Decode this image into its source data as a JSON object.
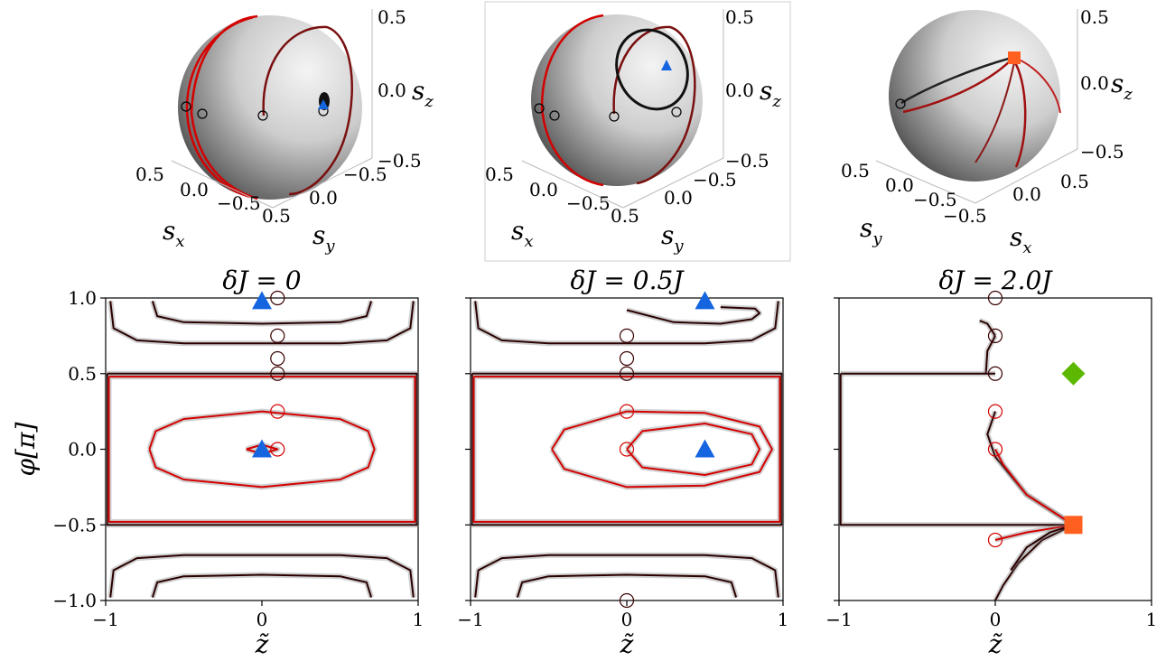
{
  "spheres": [
    {
      "axis_labels": {
        "left": "s",
        "left_sub": "x",
        "right": "s",
        "right_sub": "y",
        "vertical": "s",
        "vertical_sub": "z"
      },
      "z_ticks": [
        "0.5",
        "0.0",
        "−0.5"
      ],
      "left_ticks": [
        "0.5",
        "0.0",
        "−0.5"
      ],
      "right_ticks": [
        "−0.5",
        "0.0",
        "0.5"
      ],
      "markers": [
        "blue-triangle"
      ]
    },
    {
      "axis_labels": {
        "left": "s",
        "left_sub": "x",
        "right": "s",
        "right_sub": "y",
        "vertical": "s",
        "vertical_sub": "z"
      },
      "z_ticks": [
        "0.5",
        "0.0",
        "−0.5"
      ],
      "left_ticks": [
        "0.5",
        "0.0",
        "−0.5"
      ],
      "right_ticks": [
        "−0.5",
        "0.0",
        "0.5"
      ],
      "markers": [
        "blue-triangle"
      ]
    },
    {
      "axis_labels": {
        "left": "s",
        "left_sub": "y",
        "right": "s",
        "right_sub": "x",
        "vertical": "s",
        "vertical_sub": "z"
      },
      "z_ticks": [
        "0.5",
        "0.0",
        "−0.5"
      ],
      "left_ticks": [
        "0.5",
        "0.0",
        "−0.5"
      ],
      "right_ticks": [
        "−0.5",
        "0.0",
        "0.5"
      ],
      "markers": [
        "orange-square"
      ]
    }
  ],
  "chart_data": [
    {
      "type": "line",
      "title": "δJ = 0",
      "xlabel": "z̃",
      "ylabel": "φ[π]",
      "xlim": [
        -1,
        1
      ],
      "ylim": [
        -1,
        1
      ],
      "x_ticks": [
        -1,
        0,
        1
      ],
      "y_ticks": [
        -1.0,
        -0.5,
        0.0,
        0.5,
        1.0
      ],
      "colors": {
        "red": "#d40000",
        "dark": "#2a0000",
        "triangle": "#1565e0",
        "square": "#ff6020",
        "diamond": "#5cb800"
      },
      "series": [
        {
          "color": "dark",
          "points": [
            [
              -0.97,
              0.98
            ],
            [
              -0.95,
              0.8
            ],
            [
              -0.8,
              0.72
            ],
            [
              -0.5,
              0.7
            ],
            [
              0.0,
              0.7
            ],
            [
              0.5,
              0.7
            ],
            [
              0.8,
              0.72
            ],
            [
              0.95,
              0.8
            ],
            [
              0.97,
              0.98
            ]
          ]
        },
        {
          "color": "dark",
          "points": [
            [
              -0.7,
              0.98
            ],
            [
              -0.67,
              0.88
            ],
            [
              -0.5,
              0.84
            ],
            [
              0.0,
              0.83
            ],
            [
              0.5,
              0.84
            ],
            [
              0.67,
              0.88
            ],
            [
              0.7,
              0.98
            ]
          ]
        },
        {
          "color": "dark",
          "points": [
            [
              -0.97,
              -0.98
            ],
            [
              -0.95,
              -0.8
            ],
            [
              -0.8,
              -0.72
            ],
            [
              -0.5,
              -0.7
            ],
            [
              0.0,
              -0.7
            ],
            [
              0.5,
              -0.7
            ],
            [
              0.8,
              -0.72
            ],
            [
              0.95,
              -0.8
            ],
            [
              0.97,
              -0.98
            ]
          ]
        },
        {
          "color": "dark",
          "points": [
            [
              -0.7,
              -0.98
            ],
            [
              -0.67,
              -0.88
            ],
            [
              -0.5,
              -0.84
            ],
            [
              0.0,
              -0.83
            ],
            [
              0.5,
              -0.84
            ],
            [
              0.67,
              -0.88
            ],
            [
              0.7,
              -0.98
            ]
          ]
        },
        {
          "color": "dark",
          "points": [
            [
              -0.99,
              0.5
            ],
            [
              0.99,
              0.5
            ],
            [
              0.99,
              -0.5
            ],
            [
              -0.99,
              -0.5
            ],
            [
              -0.99,
              0.5
            ]
          ]
        },
        {
          "color": "red",
          "points": [
            [
              -0.98,
              0.48
            ],
            [
              0.98,
              0.48
            ],
            [
              0.98,
              -0.48
            ],
            [
              -0.98,
              -0.48
            ],
            [
              -0.98,
              0.48
            ]
          ]
        },
        {
          "color": "red",
          "points": [
            [
              -0.72,
              0.0
            ],
            [
              -0.68,
              0.12
            ],
            [
              -0.5,
              0.2
            ],
            [
              0.0,
              0.25
            ],
            [
              0.5,
              0.2
            ],
            [
              0.68,
              0.12
            ],
            [
              0.72,
              0.0
            ],
            [
              0.68,
              -0.12
            ],
            [
              0.5,
              -0.2
            ],
            [
              0.0,
              -0.25
            ],
            [
              -0.5,
              -0.2
            ],
            [
              -0.68,
              -0.12
            ],
            [
              -0.72,
              0.0
            ]
          ]
        },
        {
          "color": "red",
          "points": [
            [
              -0.1,
              0.0
            ],
            [
              0.0,
              0.03
            ],
            [
              0.1,
              0.0
            ],
            [
              0.0,
              -0.03
            ],
            [
              -0.1,
              0.0
            ]
          ]
        }
      ],
      "circles": [
        [
          0.1,
          1.0
        ],
        [
          0.1,
          0.75
        ],
        [
          0.1,
          0.6
        ],
        [
          0.1,
          0.5
        ],
        [
          0.1,
          0.25
        ],
        [
          0.1,
          0.0
        ]
      ],
      "triangles": [
        [
          0.0,
          0.98
        ],
        [
          0.0,
          0.0
        ]
      ],
      "squares": [],
      "diamonds": []
    },
    {
      "type": "line",
      "title": "δJ = 0.5J",
      "xlabel": "z̃",
      "ylabel": "",
      "xlim": [
        -1,
        1
      ],
      "ylim": [
        -1,
        1
      ],
      "x_ticks": [
        -1,
        0,
        1
      ],
      "y_ticks": [
        -1.0,
        -0.5,
        0.0,
        0.5,
        1.0
      ],
      "colors": {
        "red": "#d40000",
        "dark": "#2a0000",
        "triangle": "#1565e0",
        "square": "#ff6020",
        "diamond": "#5cb800"
      },
      "series": [
        {
          "color": "dark",
          "points": [
            [
              -0.97,
              0.98
            ],
            [
              -0.95,
              0.8
            ],
            [
              -0.8,
              0.72
            ],
            [
              -0.5,
              0.7
            ],
            [
              0.0,
              0.7
            ],
            [
              0.5,
              0.7
            ],
            [
              0.8,
              0.72
            ],
            [
              0.95,
              0.8
            ],
            [
              0.97,
              0.98
            ]
          ]
        },
        {
          "color": "dark",
          "points": [
            [
              0.0,
              0.92
            ],
            [
              0.3,
              0.84
            ],
            [
              0.6,
              0.83
            ],
            [
              0.8,
              0.86
            ],
            [
              0.85,
              0.9
            ],
            [
              0.82,
              0.93
            ],
            [
              0.6,
              0.94
            ]
          ]
        },
        {
          "color": "dark",
          "points": [
            [
              -0.97,
              -0.98
            ],
            [
              -0.95,
              -0.8
            ],
            [
              -0.8,
              -0.72
            ],
            [
              -0.5,
              -0.7
            ],
            [
              0.0,
              -0.7
            ],
            [
              0.5,
              -0.7
            ],
            [
              0.8,
              -0.72
            ],
            [
              0.95,
              -0.8
            ],
            [
              0.97,
              -0.98
            ]
          ]
        },
        {
          "color": "dark",
          "points": [
            [
              -0.7,
              -0.98
            ],
            [
              -0.67,
              -0.88
            ],
            [
              -0.5,
              -0.84
            ],
            [
              0.0,
              -0.83
            ],
            [
              0.5,
              -0.84
            ],
            [
              0.67,
              -0.88
            ],
            [
              0.7,
              -0.98
            ]
          ]
        },
        {
          "color": "dark",
          "points": [
            [
              -0.99,
              0.5
            ],
            [
              0.99,
              0.5
            ],
            [
              0.99,
              -0.5
            ],
            [
              -0.99,
              -0.5
            ],
            [
              -0.99,
              0.5
            ]
          ]
        },
        {
          "color": "red",
          "points": [
            [
              -0.98,
              0.48
            ],
            [
              0.98,
              0.48
            ],
            [
              0.98,
              -0.48
            ],
            [
              -0.98,
              -0.48
            ],
            [
              -0.98,
              0.48
            ]
          ]
        },
        {
          "color": "red",
          "points": [
            [
              -0.48,
              0.0
            ],
            [
              -0.4,
              0.13
            ],
            [
              0.0,
              0.25
            ],
            [
              0.5,
              0.24
            ],
            [
              0.85,
              0.15
            ],
            [
              0.93,
              0.0
            ],
            [
              0.85,
              -0.15
            ],
            [
              0.5,
              -0.24
            ],
            [
              0.0,
              -0.25
            ],
            [
              -0.4,
              -0.13
            ],
            [
              -0.48,
              0.0
            ]
          ]
        },
        {
          "color": "red",
          "points": [
            [
              0.0,
              0.0
            ],
            [
              0.1,
              0.12
            ],
            [
              0.5,
              0.17
            ],
            [
              0.8,
              0.1
            ],
            [
              0.85,
              0.0
            ],
            [
              0.8,
              -0.1
            ],
            [
              0.5,
              -0.17
            ],
            [
              0.1,
              -0.12
            ],
            [
              0.0,
              0.0
            ]
          ]
        }
      ],
      "circles": [
        [
          0.0,
          0.75
        ],
        [
          0.0,
          0.6
        ],
        [
          0.0,
          0.5
        ],
        [
          0.0,
          0.25
        ],
        [
          0.0,
          0.0
        ],
        [
          0.0,
          -1.0
        ]
      ],
      "triangles": [
        [
          0.5,
          0.98
        ],
        [
          0.5,
          0.0
        ]
      ],
      "squares": [],
      "diamonds": []
    },
    {
      "type": "line",
      "title": "δJ = 2.0J",
      "xlabel": "z̃",
      "ylabel": "",
      "xlim": [
        -1,
        1
      ],
      "ylim": [
        -1,
        1
      ],
      "x_ticks": [
        -1,
        0,
        1
      ],
      "y_ticks": [
        -1.0,
        -0.5,
        0.0,
        0.5,
        1.0
      ],
      "colors": {
        "red": "#d40000",
        "dark": "#2a0000",
        "triangle": "#1565e0",
        "square": "#ff6020",
        "diamond": "#5cb800"
      },
      "series": [
        {
          "color": "dark",
          "points": [
            [
              -0.1,
              0.85
            ],
            [
              -0.05,
              0.83
            ],
            [
              0.0,
              0.75
            ]
          ]
        },
        {
          "color": "dark",
          "points": [
            [
              0.0,
              0.75
            ],
            [
              -0.05,
              0.65
            ],
            [
              -0.06,
              0.5
            ]
          ]
        },
        {
          "color": "dark",
          "points": [
            [
              -0.99,
              0.5
            ],
            [
              0.0,
              0.5
            ]
          ]
        },
        {
          "color": "dark",
          "points": [
            [
              -0.99,
              0.5
            ],
            [
              -0.99,
              -0.5
            ],
            [
              0.5,
              -0.5
            ]
          ]
        },
        {
          "color": "dark",
          "points": [
            [
              0.0,
              0.25
            ],
            [
              -0.05,
              0.1
            ],
            [
              0.0,
              -0.05
            ],
            [
              0.2,
              -0.3
            ],
            [
              0.5,
              -0.5
            ]
          ]
        },
        {
          "color": "red",
          "points": [
            [
              0.0,
              0.0
            ],
            [
              0.05,
              -0.1
            ],
            [
              0.2,
              -0.3
            ],
            [
              0.5,
              -0.5
            ]
          ]
        },
        {
          "color": "red",
          "points": [
            [
              0.0,
              -0.6
            ],
            [
              0.2,
              -0.55
            ],
            [
              0.5,
              -0.5
            ]
          ]
        },
        {
          "color": "dark",
          "points": [
            [
              0.5,
              -0.5
            ],
            [
              0.3,
              -0.6
            ],
            [
              0.15,
              -0.75
            ],
            [
              0.05,
              -0.9
            ],
            [
              0.0,
              -1.0
            ]
          ]
        },
        {
          "color": "dark",
          "points": [
            [
              0.5,
              -0.5
            ],
            [
              0.35,
              -0.55
            ],
            [
              0.2,
              -0.65
            ],
            [
              0.1,
              -0.8
            ]
          ]
        }
      ],
      "circles": [
        [
          0.0,
          1.0
        ],
        [
          0.0,
          0.75
        ],
        [
          0.0,
          0.5
        ],
        [
          0.0,
          0.25
        ],
        [
          0.0,
          0.0
        ],
        [
          0.0,
          -0.6
        ]
      ],
      "triangles": [],
      "squares": [
        [
          0.5,
          -0.5
        ]
      ],
      "diamonds": [
        [
          0.5,
          0.5
        ]
      ]
    }
  ]
}
